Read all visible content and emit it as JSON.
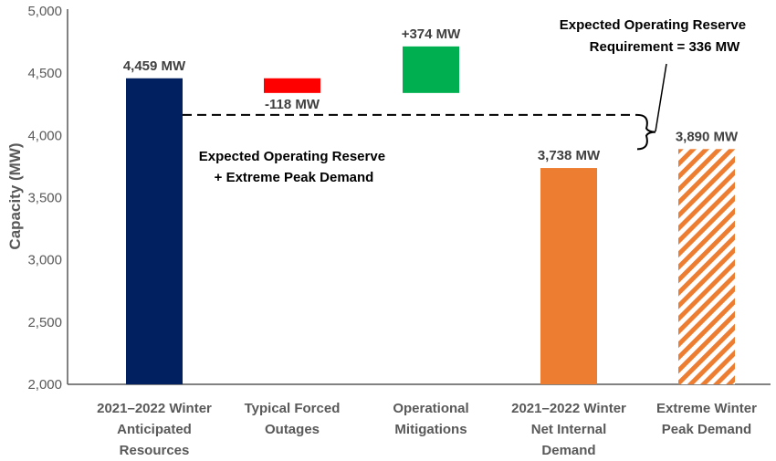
{
  "chart_data": {
    "type": "bar",
    "title": "",
    "xlabel": "",
    "ylabel": "Capacity (MW)",
    "ylim": [
      2000,
      5000
    ],
    "yticks": [
      "2,000",
      "2,500",
      "3,000",
      "3,500",
      "4,000",
      "4,500",
      "5,000"
    ],
    "ytick_values": [
      2000,
      2500,
      3000,
      3500,
      4000,
      4500,
      5000
    ],
    "grid": false,
    "categories": [
      [
        "2021–2022 Winter",
        "Anticipated",
        "Resources"
      ],
      [
        "Typical Forced",
        "Outages"
      ],
      [
        "Operational",
        "Mitigations"
      ],
      [
        "2021–2022 Winter",
        "Net Internal",
        "Demand"
      ],
      [
        "Extreme Winter",
        "Peak Demand"
      ]
    ],
    "bars": [
      {
        "base": 2000,
        "top": 4459,
        "color": "#002060",
        "pattern": "solid",
        "label": "4,459 MW",
        "label_pos": "above"
      },
      {
        "base": 4341,
        "top": 4459,
        "color": "#ff0000",
        "pattern": "solid",
        "label": "-118 MW",
        "label_pos": "below"
      },
      {
        "base": 4341,
        "top": 4715,
        "color": "#00b050",
        "pattern": "solid",
        "label": "+374 MW",
        "label_pos": "above"
      },
      {
        "base": 2000,
        "top": 3738,
        "color": "#ed7d31",
        "pattern": "solid",
        "label": "3,738 MW",
        "label_pos": "above"
      },
      {
        "base": 2000,
        "top": 3890,
        "color": "#ed7d31",
        "pattern": "hatched",
        "label": "3,890 MW",
        "label_pos": "above"
      }
    ],
    "reference_line": {
      "value": 4165,
      "style": "dashed",
      "color": "#000000"
    },
    "annotations": {
      "left": [
        "Expected Operating Reserve",
        "+ Extreme Peak Demand"
      ],
      "right": [
        "Expected Operating Reserve",
        "Requirement = 336 MW"
      ]
    }
  }
}
